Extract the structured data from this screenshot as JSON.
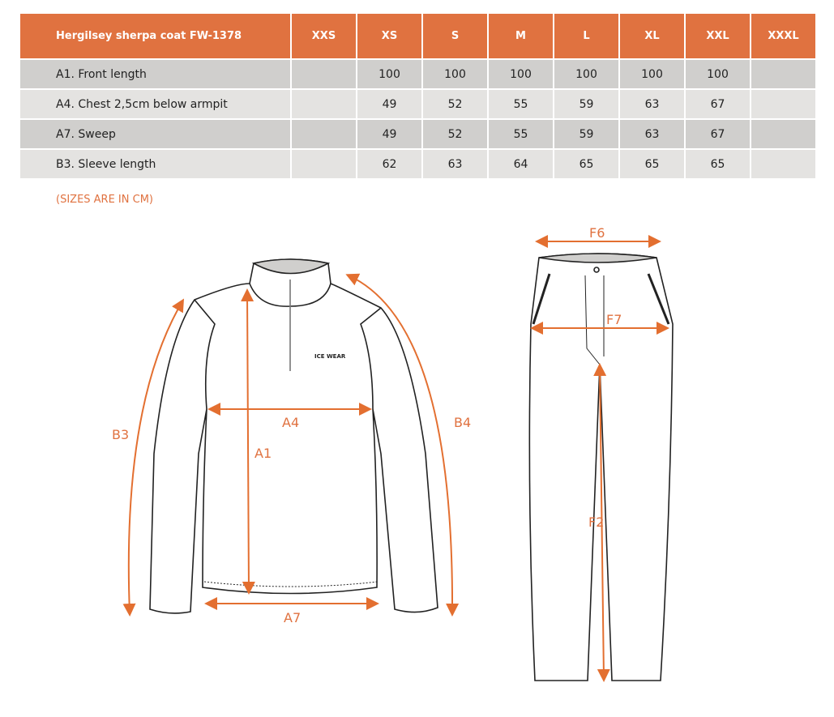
{
  "table": {
    "title": "Hergilsey sherpa coat FW-1378",
    "sizes": [
      "XXS",
      "XS",
      "S",
      "M",
      "L",
      "XL",
      "XXL",
      "XXXL"
    ],
    "rows": [
      {
        "label": "A1. Front length",
        "values": [
          "",
          "100",
          "100",
          "100",
          "100",
          "100",
          "100",
          ""
        ]
      },
      {
        "label": "A4. Chest 2,5cm below armpit",
        "values": [
          "",
          "49",
          "52",
          "55",
          "59",
          "63",
          "67",
          ""
        ]
      },
      {
        "label": "A7. Sweep",
        "values": [
          "",
          "49",
          "52",
          "55",
          "59",
          "63",
          "67",
          ""
        ]
      },
      {
        "label": "B3. Sleeve length",
        "values": [
          "",
          "62",
          "63",
          "64",
          "65",
          "65",
          "65",
          ""
        ]
      }
    ]
  },
  "note": "(SIZES ARE IN CM)",
  "diagram": {
    "jacket_labels": {
      "a1": "A1",
      "a4": "A4",
      "a7": "A7",
      "b3": "B3",
      "b4": "B4"
    },
    "pants_labels": {
      "f6": "F6",
      "f7": "F7",
      "f2": "F2"
    },
    "logo": "ICE WEAR",
    "accent_color": "#e07240"
  }
}
